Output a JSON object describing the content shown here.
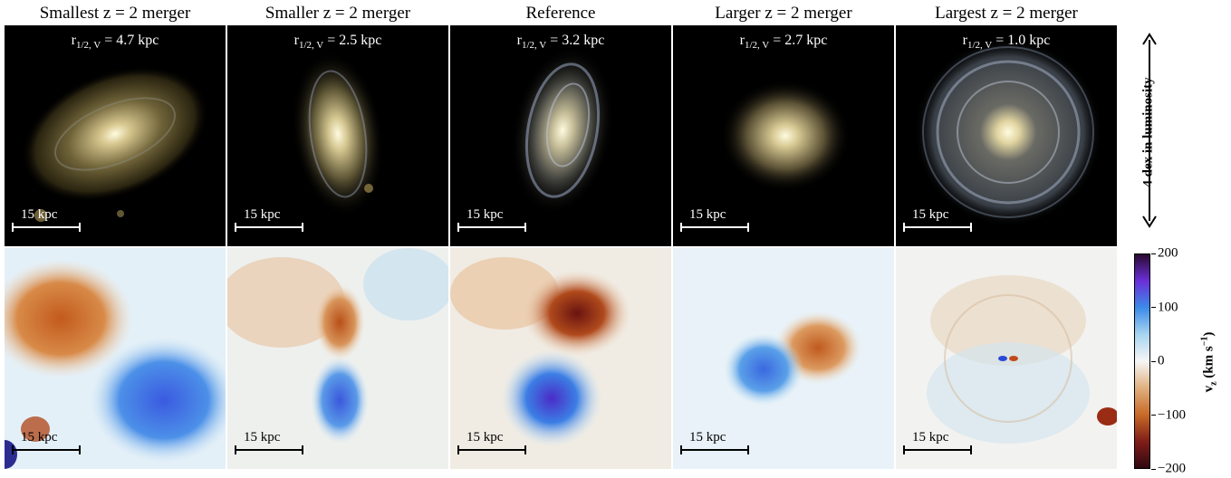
{
  "columns": [
    {
      "title": "Smallest z = 2 merger",
      "radius_prefix": "r",
      "radius_sub": "1/2, V",
      "radius_value": " = 4.7 kpc",
      "scale": "15 kpc"
    },
    {
      "title": "Smaller z = 2 merger",
      "radius_prefix": "r",
      "radius_sub": "1/2, V",
      "radius_value": " = 2.5 kpc",
      "scale": "15 kpc"
    },
    {
      "title": "Reference",
      "radius_prefix": "r",
      "radius_sub": "1/2, V",
      "radius_value": " = 3.2 kpc",
      "scale": "15 kpc"
    },
    {
      "title": "Larger z = 2 merger",
      "radius_prefix": "r",
      "radius_sub": "1/2, V",
      "radius_value": " = 2.7 kpc",
      "scale": "15 kpc"
    },
    {
      "title": "Largest z = 2 merger",
      "radius_prefix": "r",
      "radius_sub": "1/2, V",
      "radius_value": " = 1.0 kpc",
      "scale": "15 kpc"
    }
  ],
  "luminosity_indicator": {
    "label": "4 dex in luminosity"
  },
  "colorbar": {
    "label_main": "v",
    "label_sub": "z",
    "label_units_open": " (km s",
    "label_units_sup": "−1",
    "label_units_close": ")",
    "ticks": [
      "200",
      "100",
      "0",
      "−100",
      "−200"
    ],
    "tick_values": [
      200,
      100,
      0,
      -100,
      -200
    ],
    "range": [
      -200,
      200
    ],
    "colors": [
      "#2a0a30",
      "#6a30d8",
      "#3c8ce8",
      "#a8d4f0",
      "#f6f6f6",
      "#e0b080",
      "#c86a28",
      "#801e18",
      "#300810"
    ]
  }
}
